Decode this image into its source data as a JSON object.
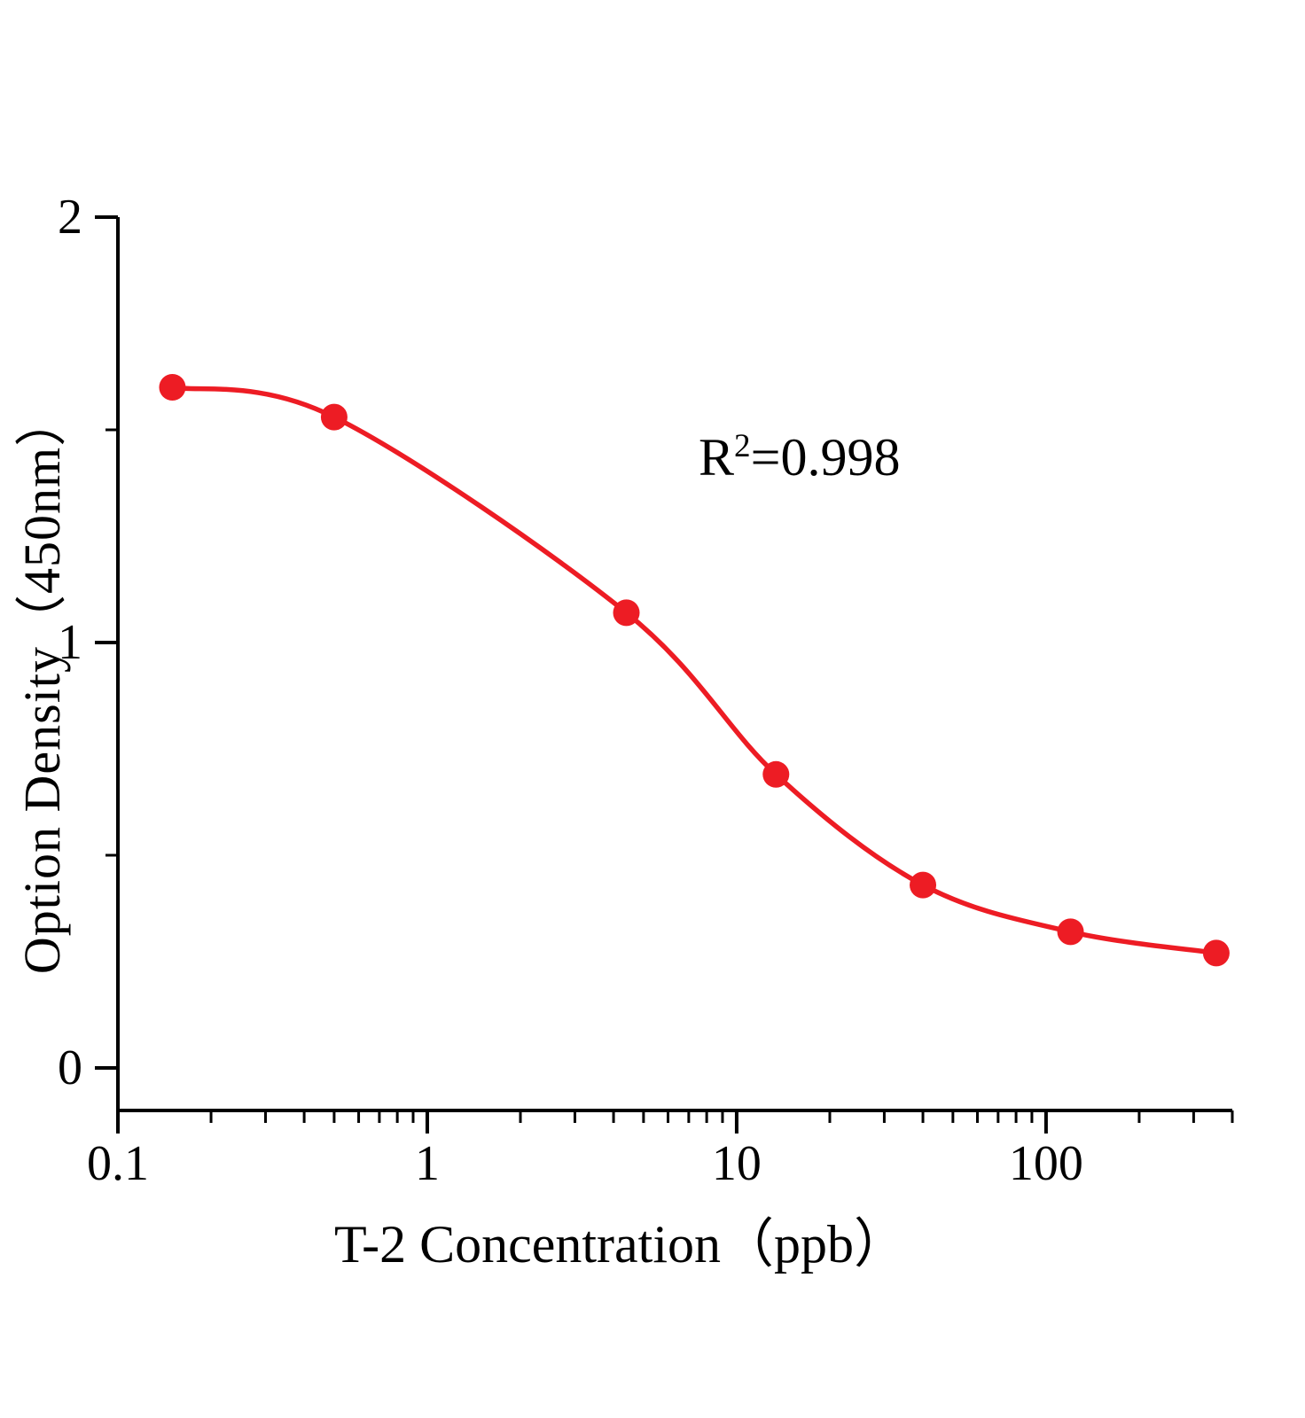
{
  "colors": {
    "curve": "#ed1c24",
    "marker": "#ed1c24",
    "axis": "#000000"
  },
  "labels": {
    "ylabel": "Option Density（450nm）",
    "xlabel": "T-2 Concentration（ppb）",
    "annotation": {
      "prefix": "R",
      "superscript": "2",
      "suffix": "=0.998"
    }
  },
  "chart_data": {
    "type": "line",
    "markers": true,
    "title": "",
    "xlabel": "T-2 Concentration（ppb）",
    "ylabel": "Option Density（450nm）",
    "annotation_text": "R2=0.998",
    "x_scale": "log",
    "x_range": [
      0.1,
      400
    ],
    "y_range": [
      0,
      2
    ],
    "x_ticks": [
      0.1,
      1,
      10,
      100
    ],
    "x_tick_labels": [
      "0.1",
      "1",
      "10",
      "100"
    ],
    "y_ticks": [
      0,
      1,
      2
    ],
    "y_tick_labels": [
      "0",
      "1",
      "2"
    ],
    "y_minor_ticks": [
      0.5,
      1.5
    ],
    "grid": false,
    "legend": "none",
    "points": [
      {
        "x": 0.15,
        "y": 1.6
      },
      {
        "x": 0.5,
        "y": 1.53
      },
      {
        "x": 4.4,
        "y": 1.07
      },
      {
        "x": 13.4,
        "y": 0.69
      },
      {
        "x": 40,
        "y": 0.43
      },
      {
        "x": 120,
        "y": 0.32
      },
      {
        "x": 355,
        "y": 0.27
      }
    ]
  }
}
